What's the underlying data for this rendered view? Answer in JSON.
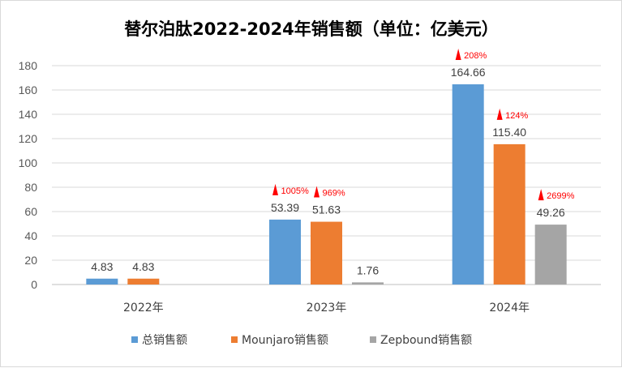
{
  "chart_data": {
    "type": "bar",
    "title": "替尔泊肽2022-2024年销售额（单位：亿美元）",
    "categories": [
      "2022年",
      "2023年",
      "2024年"
    ],
    "ylim": [
      0,
      180
    ],
    "yticks": [
      0,
      20,
      40,
      60,
      80,
      100,
      120,
      140,
      160,
      180
    ],
    "grid": true,
    "legend_position": "bottom",
    "series": [
      {
        "name": "总销售额",
        "color": "#5b9bd5",
        "values": [
          4.83,
          53.39,
          164.66
        ],
        "labels": [
          "4.83",
          "53.39",
          "164.66"
        ],
        "growth": [
          "",
          "1005%",
          "208%"
        ]
      },
      {
        "name": "Mounjaro销售额",
        "color": "#ed7d31",
        "values": [
          4.83,
          51.63,
          115.4
        ],
        "labels": [
          "4.83",
          "51.63",
          "115.40"
        ],
        "growth": [
          "",
          "969%",
          "124%"
        ]
      },
      {
        "name": "Zepbound销售额",
        "color": "#a5a5a5",
        "values": [
          null,
          1.76,
          49.26
        ],
        "labels": [
          "",
          "1.76",
          "49.26"
        ],
        "growth": [
          "",
          "",
          "2699%"
        ]
      }
    ],
    "growth_marker_color": "#ff0000"
  }
}
